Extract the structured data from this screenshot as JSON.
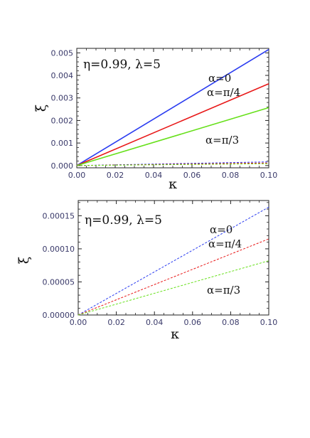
{
  "chart_data": [
    {
      "type": "line",
      "annotation": "η=0.99, λ=5",
      "xlabel": "κ",
      "ylabel": "ξ",
      "xlim": [
        0,
        0.1
      ],
      "ylim": [
        -0.0001,
        0.0052
      ],
      "xticks": [
        "0.00",
        "0.02",
        "0.04",
        "0.06",
        "0.08",
        "0.10"
      ],
      "xtick_values": [
        0,
        0.02,
        0.04,
        0.06,
        0.08,
        0.1
      ],
      "yticks": [
        "0.000",
        "0.001",
        "0.002",
        "0.003",
        "0.004",
        "0.005"
      ],
      "ytick_values": [
        0,
        0.001,
        0.002,
        0.003,
        0.004,
        0.005
      ],
      "series": [
        {
          "name": "α=0",
          "color": "#2a3cf0",
          "style": "solid",
          "x": [
            0,
            0.1
          ],
          "y": [
            0,
            0.00515
          ]
        },
        {
          "name": "α=π/4",
          "color": "#e81818",
          "style": "solid",
          "x": [
            0,
            0.1
          ],
          "y": [
            0,
            0.00363
          ]
        },
        {
          "name": "α=π/3",
          "color": "#66e01a",
          "style": "solid",
          "x": [
            0,
            0.1
          ],
          "y": [
            0,
            0.00257
          ]
        },
        {
          "name": "α=0",
          "color": "#2a3cf0",
          "style": "dashed",
          "x": [
            0,
            0.1
          ],
          "y": [
            0,
            0.000163
          ]
        },
        {
          "name": "α=π/4",
          "color": "#e81818",
          "style": "dashed",
          "x": [
            0,
            0.1
          ],
          "y": [
            0,
            0.000115
          ]
        },
        {
          "name": "α=π/3",
          "color": "#66e01a",
          "style": "dashed",
          "x": [
            0,
            0.1
          ],
          "y": [
            0,
            8.2e-05
          ]
        }
      ],
      "series_labels": [
        "α=0",
        "α=π/4",
        "α=π/3"
      ]
    },
    {
      "type": "line",
      "annotation": "η=0.99, λ=5",
      "xlabel": "κ",
      "ylabel": "ξ",
      "xlim": [
        0,
        0.1
      ],
      "ylim": [
        0,
        0.000173
      ],
      "xticks": [
        "0.00",
        "0.02",
        "0.04",
        "0.06",
        "0.08",
        "0.10"
      ],
      "xtick_values": [
        0,
        0.02,
        0.04,
        0.06,
        0.08,
        0.1
      ],
      "yticks": [
        "0.00000",
        "0.00005",
        "0.00010",
        "0.00015"
      ],
      "ytick_values": [
        0,
        5e-05,
        0.0001,
        0.00015
      ],
      "series": [
        {
          "name": "α=0",
          "color": "#2a3cf0",
          "style": "dashed",
          "x": [
            0,
            0.1
          ],
          "y": [
            0,
            0.000163
          ]
        },
        {
          "name": "α=π/4",
          "color": "#e81818",
          "style": "dashed",
          "x": [
            0,
            0.1
          ],
          "y": [
            0,
            0.000115
          ]
        },
        {
          "name": "α=π/3",
          "color": "#66e01a",
          "style": "dashed",
          "x": [
            0,
            0.1
          ],
          "y": [
            0,
            8.2e-05
          ]
        }
      ],
      "series_labels": [
        "α=0",
        "α=π/4",
        "α=π/3"
      ]
    }
  ]
}
